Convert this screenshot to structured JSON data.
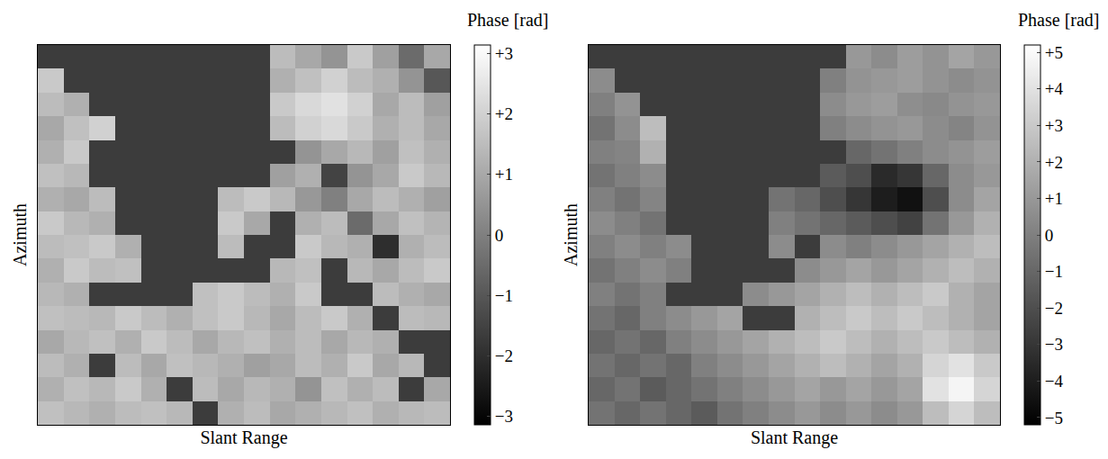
{
  "chart_data": [
    {
      "type": "heatmap",
      "x_label": "Slant Range",
      "y_label": "Azimuth",
      "colorbar_title": "Phase [rad]",
      "tick_labels": false,
      "xlim": [
        -0.5,
        15.5
      ],
      "ylim": [
        15.5,
        -0.5
      ],
      "colorbar_range": [
        -3.1416,
        3.1416
      ],
      "colorbar_ticks": [
        {
          "value": 3,
          "label": "+3"
        },
        {
          "value": 2,
          "label": "+2"
        },
        {
          "value": 1,
          "label": "+1"
        },
        0,
        {
          "value": -1,
          "label": "−1"
        },
        {
          "value": -2,
          "label": "−2"
        },
        {
          "value": -3,
          "label": "−3"
        }
      ],
      "cells": [
        [
          null,
          null,
          null,
          null,
          null,
          null,
          null,
          null,
          null,
          1.5,
          1.0,
          0.5,
          1.8,
          0.8,
          -0.5,
          1.0
        ],
        [
          1.8,
          null,
          null,
          null,
          null,
          null,
          null,
          null,
          null,
          1.2,
          1.6,
          2.0,
          1.5,
          1.2,
          0.5,
          -1.0
        ],
        [
          1.5,
          1.2,
          null,
          null,
          null,
          null,
          null,
          null,
          null,
          1.8,
          2.2,
          2.4,
          2.0,
          1.0,
          1.5,
          0.8
        ],
        [
          1.0,
          1.6,
          2.0,
          null,
          null,
          null,
          null,
          null,
          null,
          1.5,
          2.0,
          2.2,
          1.8,
          1.2,
          1.5,
          1.0
        ],
        [
          1.2,
          1.8,
          null,
          null,
          null,
          null,
          null,
          null,
          null,
          null,
          0.5,
          1.0,
          1.4,
          0.8,
          1.6,
          1.2
        ],
        [
          1.6,
          1.4,
          null,
          null,
          null,
          null,
          null,
          null,
          null,
          0.8,
          1.2,
          -1.5,
          0.5,
          1.0,
          1.8,
          1.4
        ],
        [
          1.2,
          1.0,
          1.5,
          null,
          null,
          null,
          null,
          1.5,
          1.8,
          1.4,
          0.6,
          0.0,
          1.0,
          1.5,
          1.2,
          0.8
        ],
        [
          1.8,
          1.4,
          1.2,
          null,
          null,
          null,
          null,
          1.8,
          1.0,
          null,
          1.2,
          1.5,
          -0.5,
          1.0,
          1.6,
          1.3
        ],
        [
          1.5,
          1.6,
          1.8,
          1.2,
          null,
          null,
          null,
          1.5,
          null,
          null,
          1.8,
          1.4,
          1.2,
          -2.0,
          1.2,
          1.5
        ],
        [
          1.2,
          1.8,
          1.5,
          1.6,
          null,
          null,
          null,
          null,
          null,
          1.4,
          1.6,
          null,
          1.4,
          1.0,
          1.5,
          1.8
        ],
        [
          1.4,
          1.2,
          null,
          null,
          null,
          null,
          1.6,
          1.8,
          1.5,
          1.2,
          1.8,
          null,
          null,
          1.5,
          1.2,
          1.0
        ],
        [
          1.6,
          1.5,
          1.4,
          1.8,
          1.5,
          1.2,
          1.6,
          1.8,
          1.4,
          1.0,
          1.5,
          1.8,
          1.2,
          null,
          1.5,
          1.4
        ],
        [
          1.0,
          1.4,
          1.6,
          1.2,
          1.8,
          1.5,
          1.0,
          1.4,
          1.6,
          1.2,
          1.5,
          1.0,
          1.4,
          1.2,
          null,
          null
        ],
        [
          1.5,
          1.2,
          null,
          1.5,
          1.0,
          1.6,
          1.4,
          1.2,
          0.8,
          1.0,
          1.5,
          1.2,
          1.8,
          1.0,
          1.4,
          null
        ],
        [
          1.2,
          1.6,
          1.4,
          1.8,
          1.2,
          null,
          1.5,
          1.0,
          1.4,
          1.2,
          0.5,
          1.6,
          1.2,
          1.5,
          null,
          1.0
        ],
        [
          1.6,
          1.4,
          1.2,
          1.5,
          1.6,
          1.4,
          null,
          1.2,
          1.5,
          1.0,
          1.2,
          1.4,
          1.6,
          1.2,
          1.4,
          1.5
        ]
      ]
    },
    {
      "type": "heatmap",
      "x_label": "Slant Range",
      "y_label": "Azimuth",
      "colorbar_title": "Phase [rad]",
      "tick_labels": false,
      "xlim": [
        -0.5,
        15.5
      ],
      "ylim": [
        15.5,
        -0.5
      ],
      "colorbar_range": [
        -5.2,
        5.2
      ],
      "colorbar_ticks": [
        {
          "value": 5,
          "label": "+5"
        },
        {
          "value": 4,
          "label": "+4"
        },
        {
          "value": 3,
          "label": "+3"
        },
        {
          "value": 2,
          "label": "+2"
        },
        {
          "value": 1,
          "label": "+1"
        },
        0,
        {
          "value": -1,
          "label": "−1"
        },
        {
          "value": -2,
          "label": "−2"
        },
        {
          "value": -3,
          "label": "−3"
        },
        {
          "value": -4,
          "label": "−4"
        },
        {
          "value": -5,
          "label": "−5"
        }
      ],
      "cells": [
        [
          null,
          null,
          null,
          null,
          null,
          null,
          null,
          null,
          null,
          null,
          1.0,
          0.5,
          1.2,
          0.8,
          1.5,
          1.0
        ],
        [
          0.5,
          null,
          null,
          null,
          null,
          null,
          null,
          null,
          null,
          0.0,
          0.8,
          1.0,
          1.2,
          0.8,
          0.5,
          0.8
        ],
        [
          0.0,
          0.8,
          null,
          null,
          null,
          null,
          null,
          null,
          null,
          0.5,
          1.0,
          1.2,
          0.6,
          0.4,
          0.8,
          1.0
        ],
        [
          -0.5,
          0.5,
          2.5,
          null,
          null,
          null,
          null,
          null,
          null,
          0.0,
          0.5,
          0.8,
          1.0,
          0.5,
          0.2,
          0.8
        ],
        [
          0.0,
          0.2,
          2.0,
          null,
          null,
          null,
          null,
          null,
          null,
          null,
          -1.0,
          -0.5,
          0.0,
          0.5,
          0.8,
          1.2
        ],
        [
          -0.5,
          0.0,
          0.5,
          null,
          null,
          null,
          null,
          null,
          null,
          -1.5,
          -2.0,
          -3.5,
          -3.0,
          -1.0,
          0.5,
          1.0
        ],
        [
          0.0,
          -0.5,
          0.2,
          null,
          null,
          null,
          null,
          -0.5,
          -1.0,
          -2.0,
          -3.0,
          -4.0,
          -4.5,
          -2.0,
          0.5,
          1.5
        ],
        [
          0.5,
          0.0,
          -0.5,
          null,
          null,
          null,
          null,
          0.0,
          -0.5,
          -1.0,
          -1.5,
          -2.0,
          -2.5,
          -0.5,
          1.0,
          2.0
        ],
        [
          0.0,
          0.5,
          0.0,
          0.5,
          null,
          null,
          null,
          0.5,
          null,
          0.5,
          0.0,
          0.5,
          1.0,
          1.5,
          2.0,
          2.5
        ],
        [
          -0.5,
          0.0,
          0.5,
          0.0,
          null,
          null,
          null,
          null,
          0.5,
          1.0,
          1.5,
          1.0,
          1.5,
          2.0,
          2.5,
          2.0
        ],
        [
          0.0,
          -0.5,
          0.0,
          null,
          null,
          null,
          0.5,
          1.0,
          1.5,
          2.0,
          2.5,
          2.0,
          2.5,
          3.0,
          2.0,
          1.5
        ],
        [
          -0.5,
          -1.0,
          0.0,
          0.5,
          1.0,
          1.5,
          null,
          null,
          2.0,
          2.5,
          3.0,
          2.5,
          3.0,
          2.5,
          2.0,
          1.5
        ],
        [
          -1.0,
          -0.5,
          -1.0,
          0.0,
          0.5,
          1.0,
          1.5,
          2.0,
          2.5,
          3.0,
          2.5,
          2.0,
          2.5,
          3.0,
          2.5,
          2.0
        ],
        [
          -0.5,
          -1.0,
          -0.5,
          -1.0,
          0.0,
          0.5,
          1.0,
          1.5,
          2.0,
          2.5,
          2.0,
          1.5,
          2.0,
          3.5,
          4.0,
          3.0
        ],
        [
          -1.0,
          -0.5,
          -1.5,
          -1.0,
          -0.5,
          0.0,
          0.5,
          1.0,
          1.5,
          1.0,
          1.5,
          1.0,
          1.5,
          4.0,
          4.8,
          3.5
        ],
        [
          -0.5,
          -1.0,
          -0.5,
          -1.0,
          -1.5,
          -0.5,
          0.0,
          0.5,
          1.0,
          0.5,
          1.0,
          0.5,
          1.0,
          2.5,
          3.5,
          2.5
        ]
      ]
    }
  ]
}
